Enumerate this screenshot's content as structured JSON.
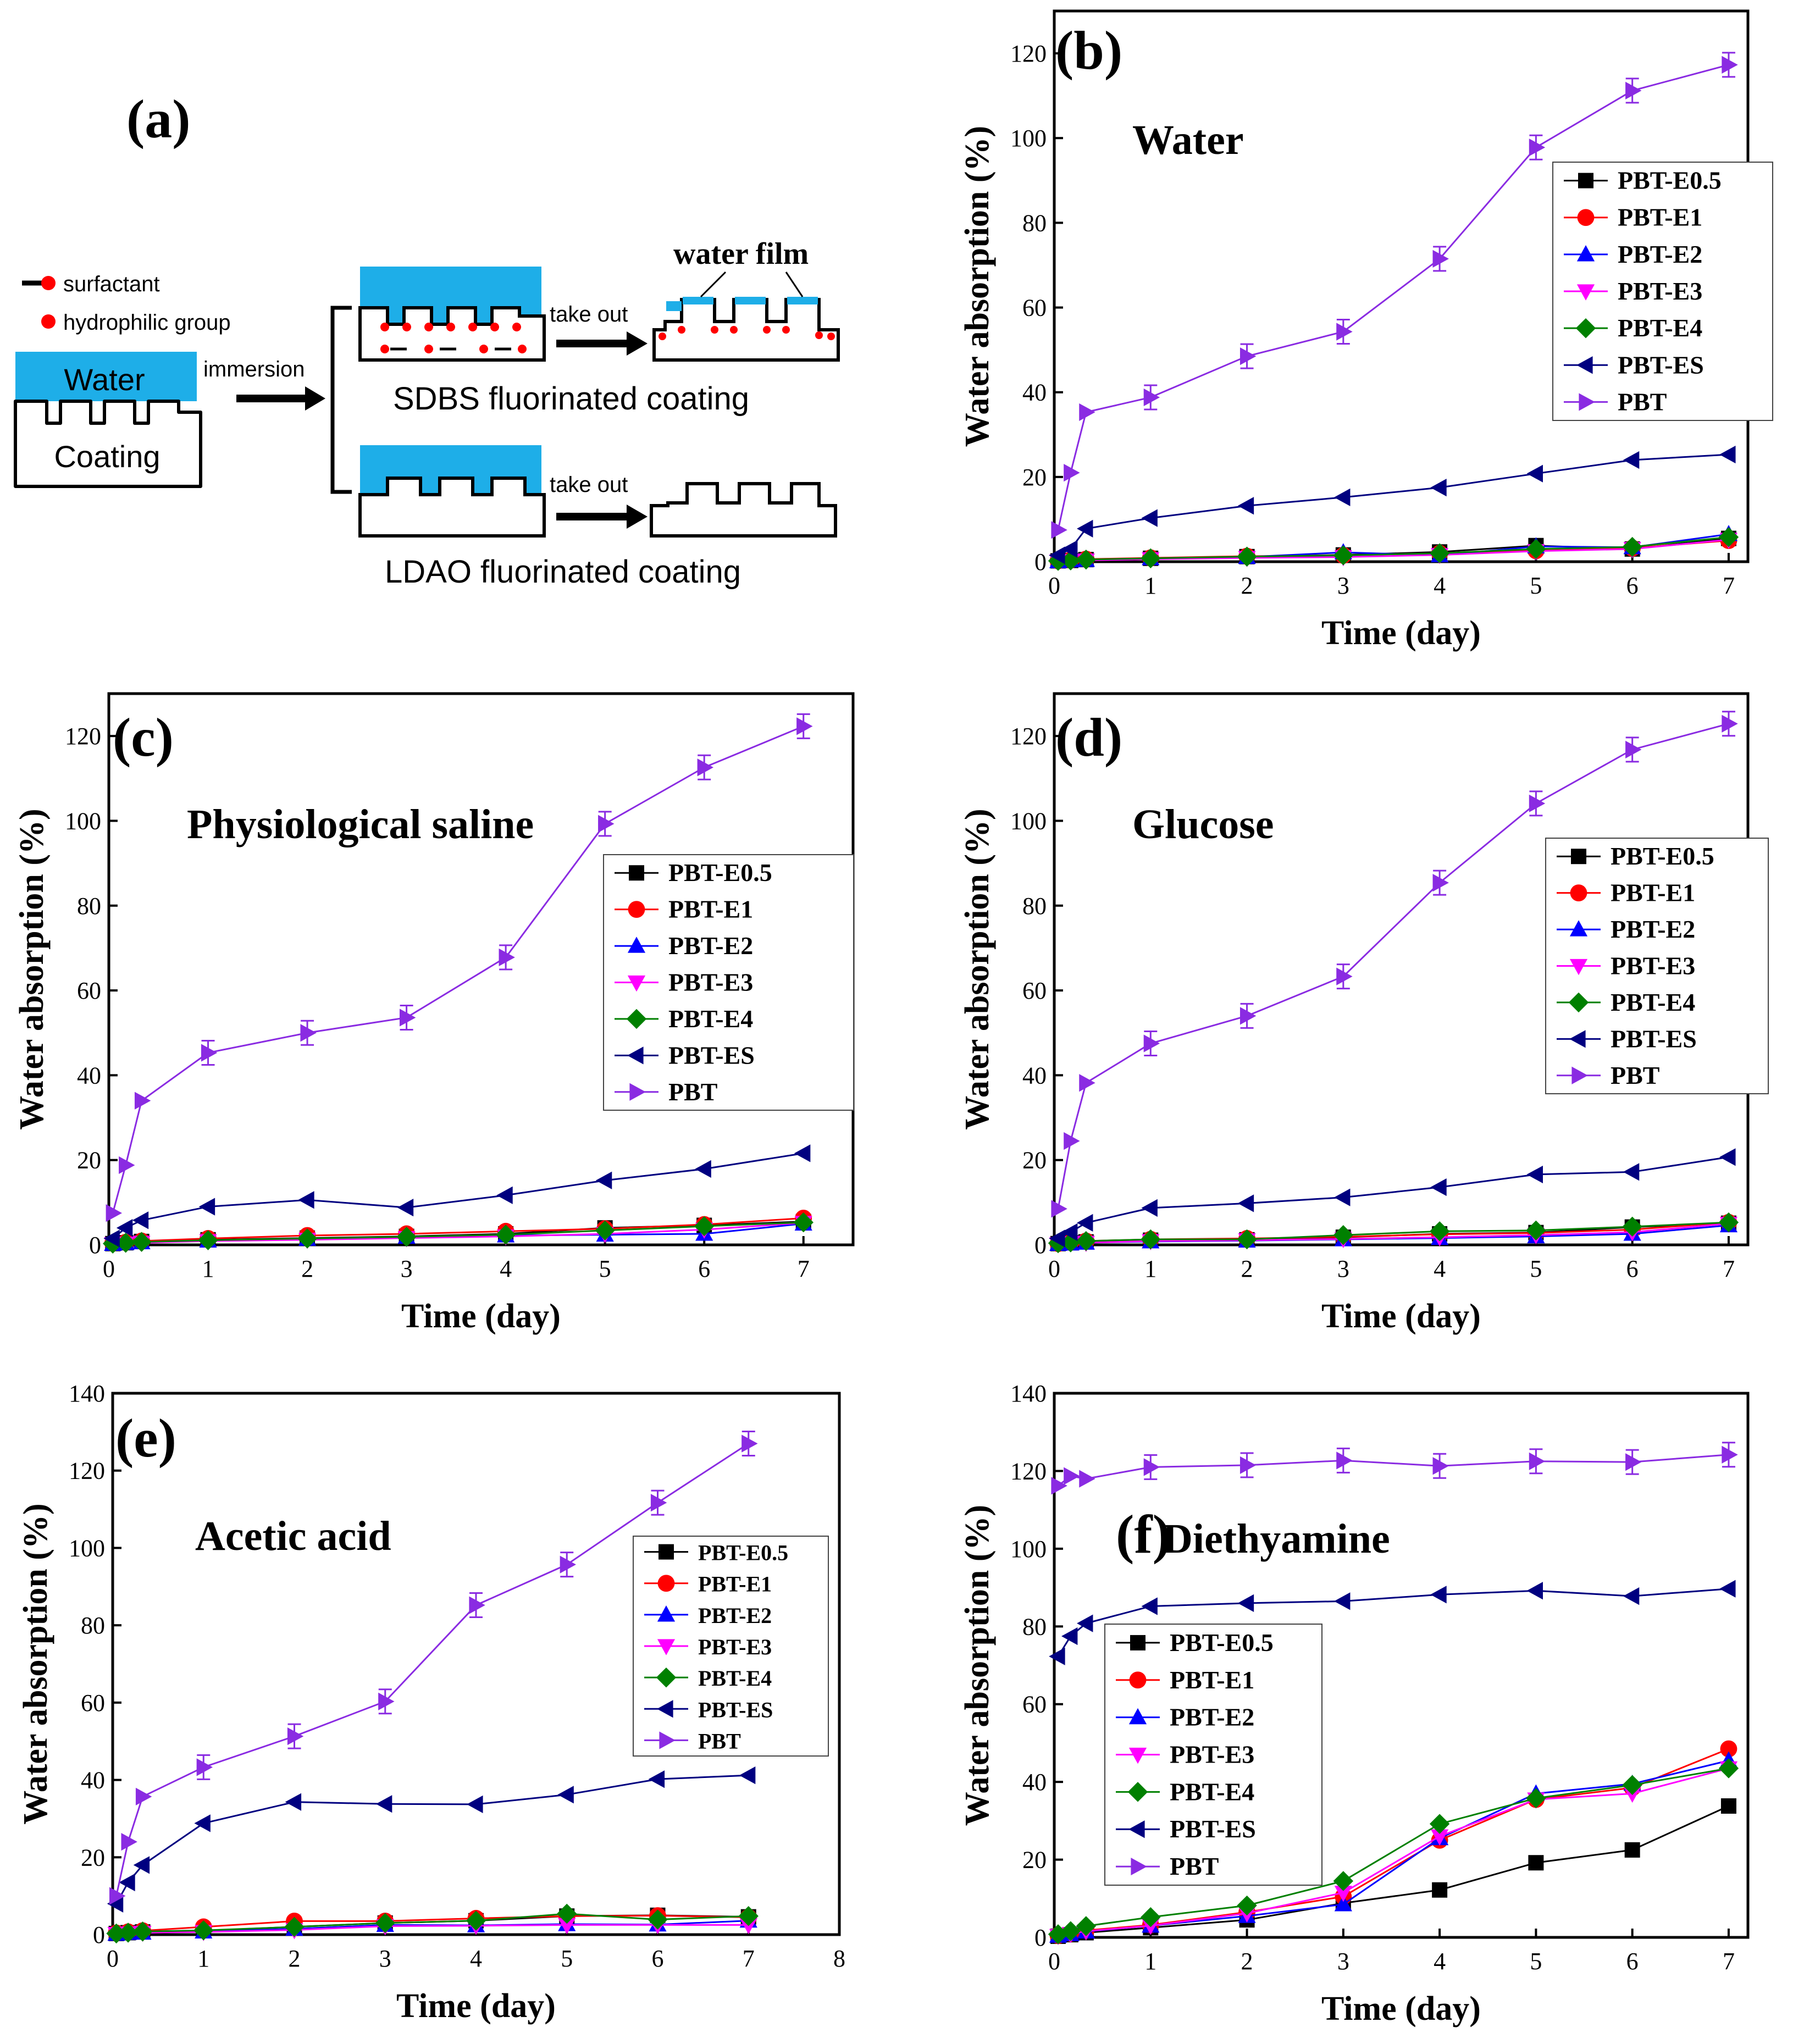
{
  "schematic": {
    "label": "(a)",
    "legend_surfactant": "surfactant",
    "legend_hydrophilic": "hydrophilic group",
    "water": "Water",
    "coating": "Coating",
    "immersion": "immersion",
    "take_out_top": "take out",
    "take_out_bottom": "take out",
    "water_film": "water film",
    "sdbs": "SDBS fluorinated coating",
    "ldao": "LDAO fluorinated coating"
  },
  "series_styles": [
    {
      "name": "PBT-E0.5",
      "color": "#000000",
      "marker": "square"
    },
    {
      "name": "PBT-E1",
      "color": "#ff0000",
      "marker": "circle"
    },
    {
      "name": "PBT-E2",
      "color": "#0000ff",
      "marker": "triangle-up"
    },
    {
      "name": "PBT-E3",
      "color": "#ff00ff",
      "marker": "triangle-down"
    },
    {
      "name": "PBT-E4",
      "color": "#008000",
      "marker": "diamond"
    },
    {
      "name": "PBT-ES",
      "color": "#000080",
      "marker": "triangle-left"
    },
    {
      "name": "PBT",
      "color": "#8a2be2",
      "marker": "triangle-right"
    }
  ],
  "chart_data": [
    {
      "id": "b",
      "type": "line",
      "panel_label": "(b)",
      "title": "Water",
      "xlabel": "Time (day)",
      "ylabel": "Water absorption (%)",
      "xlim": [
        0,
        7.2
      ],
      "ylim": [
        0,
        130
      ],
      "xticks": [
        0,
        1,
        2,
        3,
        4,
        5,
        6,
        7
      ],
      "yticks": [
        0,
        20,
        40,
        60,
        80,
        100,
        120
      ],
      "legend_position": "top-right",
      "x": [
        0.04,
        0.17,
        0.33,
        1,
        2,
        3,
        4,
        5,
        6,
        7
      ],
      "series": [
        {
          "name": "PBT-E0.5",
          "values": [
            0.2,
            0.3,
            0.5,
            0.8,
            1.2,
            1.6,
            2.3,
            3.8,
            3,
            5.5
          ]
        },
        {
          "name": "PBT-E1",
          "values": [
            0.2,
            0.4,
            0.6,
            0.9,
            1.3,
            1.5,
            2,
            2.6,
            3.2,
            5
          ]
        },
        {
          "name": "PBT-E2",
          "values": [
            0.1,
            0.3,
            0.4,
            0.8,
            1.1,
            2.2,
            1.5,
            3.6,
            3.4,
            6.5
          ]
        },
        {
          "name": "PBT-E3",
          "values": [
            0.1,
            0.2,
            0.3,
            0.6,
            0.9,
            1.1,
            1.6,
            2.5,
            3,
            5.2
          ]
        },
        {
          "name": "PBT-E4",
          "values": [
            0.2,
            0.3,
            0.5,
            0.8,
            1.2,
            1.5,
            2,
            3,
            3.5,
            5.8
          ]
        },
        {
          "name": "PBT-ES",
          "values": [
            1.5,
            3,
            7.8,
            10.3,
            13.2,
            15.2,
            17.5,
            20.8,
            24,
            25.3
          ]
        },
        {
          "name": "PBT",
          "values": [
            7.5,
            21,
            35.3,
            38.8,
            48.5,
            54.3,
            71.5,
            97.8,
            111.2,
            117.3
          ]
        }
      ]
    },
    {
      "id": "c",
      "type": "line",
      "panel_label": "(c)",
      "title": "Physiological saline",
      "xlabel": "Time (day)",
      "ylabel": "Water absorption (%)",
      "xlim": [
        0,
        7.5
      ],
      "ylim": [
        0,
        130
      ],
      "xticks": [
        0,
        1,
        2,
        3,
        4,
        5,
        6,
        7
      ],
      "yticks": [
        0,
        20,
        40,
        60,
        80,
        100,
        120
      ],
      "legend_position": "center-right",
      "x": [
        0.04,
        0.17,
        0.33,
        1,
        2,
        3,
        4,
        5,
        6,
        7
      ],
      "series": [
        {
          "name": "PBT-E0.5",
          "values": [
            0.3,
            0.5,
            0.8,
            1.2,
            1.6,
            2,
            2.6,
            4,
            4.6,
            5.5
          ]
        },
        {
          "name": "PBT-E1",
          "values": [
            0.4,
            0.6,
            0.9,
            1.5,
            2.2,
            2.6,
            3.2,
            3.8,
            4.8,
            6.3
          ]
        },
        {
          "name": "PBT-E2",
          "values": [
            0.2,
            0.4,
            0.6,
            1,
            1.4,
            1.9,
            2.2,
            2.4,
            2.6,
            5
          ]
        },
        {
          "name": "PBT-E3",
          "values": [
            0.2,
            0.3,
            0.5,
            0.9,
            1.2,
            1.6,
            2,
            2.6,
            3.6,
            5.2
          ]
        },
        {
          "name": "PBT-E4",
          "values": [
            0.3,
            0.5,
            0.7,
            1.1,
            1.5,
            1.9,
            2.4,
            3.4,
            4.4,
            5.3
          ]
        },
        {
          "name": "PBT-ES",
          "values": [
            1.5,
            4,
            5.8,
            9,
            10.6,
            8.8,
            11.7,
            15.2,
            17.9,
            21.6
          ]
        },
        {
          "name": "PBT",
          "values": [
            7.5,
            18.8,
            34,
            45.3,
            50,
            53.6,
            67.8,
            99.3,
            112.6,
            122.3
          ]
        }
      ]
    },
    {
      "id": "d",
      "type": "line",
      "panel_label": "(d)",
      "title": "Glucose",
      "xlabel": "Time (day)",
      "ylabel": "Water absorption (%)",
      "xlim": [
        0,
        7.2
      ],
      "ylim": [
        0,
        130
      ],
      "xticks": [
        0,
        1,
        2,
        3,
        4,
        5,
        6,
        7
      ],
      "yticks": [
        0,
        20,
        40,
        60,
        80,
        100,
        120
      ],
      "legend_position": "center-right",
      "x": [
        0.04,
        0.17,
        0.33,
        1,
        2,
        3,
        4,
        5,
        6,
        7
      ],
      "series": [
        {
          "name": "PBT-E0.5",
          "values": [
            0.3,
            0.5,
            0.7,
            1.1,
            1.2,
            1.8,
            2.6,
            2.9,
            4.2,
            5.1
          ]
        },
        {
          "name": "PBT-E1",
          "values": [
            0.3,
            0.6,
            0.9,
            1.3,
            1.5,
            1.9,
            2.5,
            2.8,
            3.6,
            5.3
          ]
        },
        {
          "name": "PBT-E2",
          "values": [
            0.2,
            0.3,
            0.5,
            0.8,
            1,
            1.3,
            1.6,
            2,
            2.6,
            4.6
          ]
        },
        {
          "name": "PBT-E3",
          "values": [
            0.2,
            0.4,
            0.5,
            0.9,
            1.1,
            1.4,
            1.8,
            2.3,
            3,
            5
          ]
        },
        {
          "name": "PBT-E4",
          "values": [
            0.4,
            0.6,
            0.9,
            1.3,
            1.3,
            2.3,
            3.2,
            3.4,
            4.3,
            5.3
          ]
        },
        {
          "name": "PBT-ES",
          "values": [
            1.5,
            3,
            5.2,
            8.7,
            9.8,
            11.2,
            13.6,
            16.6,
            17.2,
            20.7
          ]
        },
        {
          "name": "PBT",
          "values": [
            8.5,
            24.5,
            38.2,
            47.5,
            54,
            63.3,
            85.4,
            104.1,
            116.8,
            122.9
          ]
        }
      ]
    },
    {
      "id": "e",
      "type": "line",
      "panel_label": "(e)",
      "title": "Acetic acid",
      "xlabel": "Time (day)",
      "ylabel": "Water absorption (%)",
      "xlim": [
        0,
        8
      ],
      "ylim": [
        0,
        140
      ],
      "xticks": [
        0,
        1,
        2,
        3,
        4,
        5,
        6,
        7,
        8
      ],
      "yticks": [
        0,
        20,
        40,
        60,
        80,
        100,
        120,
        140
      ],
      "legend_position": "center-right",
      "x": [
        0.04,
        0.17,
        0.33,
        1,
        2,
        3,
        4,
        5,
        6,
        7
      ],
      "series": [
        {
          "name": "PBT-E0.5",
          "values": [
            0.3,
            0.5,
            0.7,
            1,
            2,
            3,
            3.6,
            4.8,
            5,
            4.6
          ]
        },
        {
          "name": "PBT-E1",
          "values": [
            0.4,
            0.7,
            1,
            2,
            3.5,
            3.5,
            4.2,
            4.8,
            4.9,
            4.5
          ]
        },
        {
          "name": "PBT-E2",
          "values": [
            0.2,
            0.4,
            0.5,
            0.8,
            1.5,
            2.5,
            2.4,
            2.7,
            2.6,
            3.6
          ]
        },
        {
          "name": "PBT-E3",
          "values": [
            0.2,
            0.3,
            0.5,
            0.7,
            1.2,
            2.2,
            2.3,
            2.5,
            2.5,
            2.5
          ]
        },
        {
          "name": "PBT-E4",
          "values": [
            0.3,
            0.5,
            0.8,
            1.1,
            2,
            3,
            3.6,
            5.4,
            3.9,
            4.8
          ]
        },
        {
          "name": "PBT-ES",
          "values": [
            8,
            13.5,
            18,
            28.8,
            34.3,
            33.8,
            33.7,
            36.2,
            40.2,
            41.2
          ]
        },
        {
          "name": "PBT",
          "values": [
            10,
            24,
            35.7,
            43.3,
            51.3,
            60.3,
            85.2,
            95.7,
            111.7,
            127
          ]
        }
      ]
    },
    {
      "id": "f",
      "type": "line",
      "panel_label": "(f)",
      "title": "Diethyamine",
      "xlabel": "Time (day)",
      "ylabel": "Water absorption (%)",
      "xlim": [
        0,
        7.2
      ],
      "ylim": [
        0,
        140
      ],
      "xticks": [
        0,
        1,
        2,
        3,
        4,
        5,
        6,
        7
      ],
      "yticks": [
        0,
        20,
        40,
        60,
        80,
        100,
        120,
        140
      ],
      "legend_position": "center-left",
      "x": [
        0.04,
        0.17,
        0.33,
        1,
        2,
        3,
        4,
        5,
        6,
        7
      ],
      "series": [
        {
          "name": "PBT-E0.5",
          "values": [
            0.3,
            0.7,
            1.2,
            2.5,
            4.5,
            8.8,
            12.2,
            19.2,
            22.5,
            33.8
          ]
        },
        {
          "name": "PBT-E1",
          "values": [
            0.5,
            1,
            1.8,
            3.2,
            6.5,
            10.5,
            25,
            35.5,
            38.5,
            48.5
          ]
        },
        {
          "name": "PBT-E2",
          "values": [
            0.4,
            0.8,
            1.5,
            3,
            5.5,
            8.5,
            25.5,
            37,
            39.5,
            45.5
          ]
        },
        {
          "name": "PBT-E3",
          "values": [
            0.4,
            0.9,
            1.6,
            3,
            6.2,
            11.5,
            26,
            35.5,
            37,
            43.5
          ]
        },
        {
          "name": "PBT-E4",
          "values": [
            0.8,
            1.6,
            2.9,
            5.2,
            8.2,
            14.5,
            29.2,
            35.8,
            39.2,
            43.5
          ]
        },
        {
          "name": "PBT-ES",
          "values": [
            72.3,
            77.5,
            80.8,
            85.2,
            86,
            86.5,
            88.2,
            89.2,
            87.8,
            89.7
          ]
        },
        {
          "name": "PBT",
          "values": [
            116.2,
            118.7,
            118,
            121,
            121.5,
            122.7,
            121.3,
            122.5,
            122.3,
            124.2
          ]
        }
      ]
    }
  ]
}
